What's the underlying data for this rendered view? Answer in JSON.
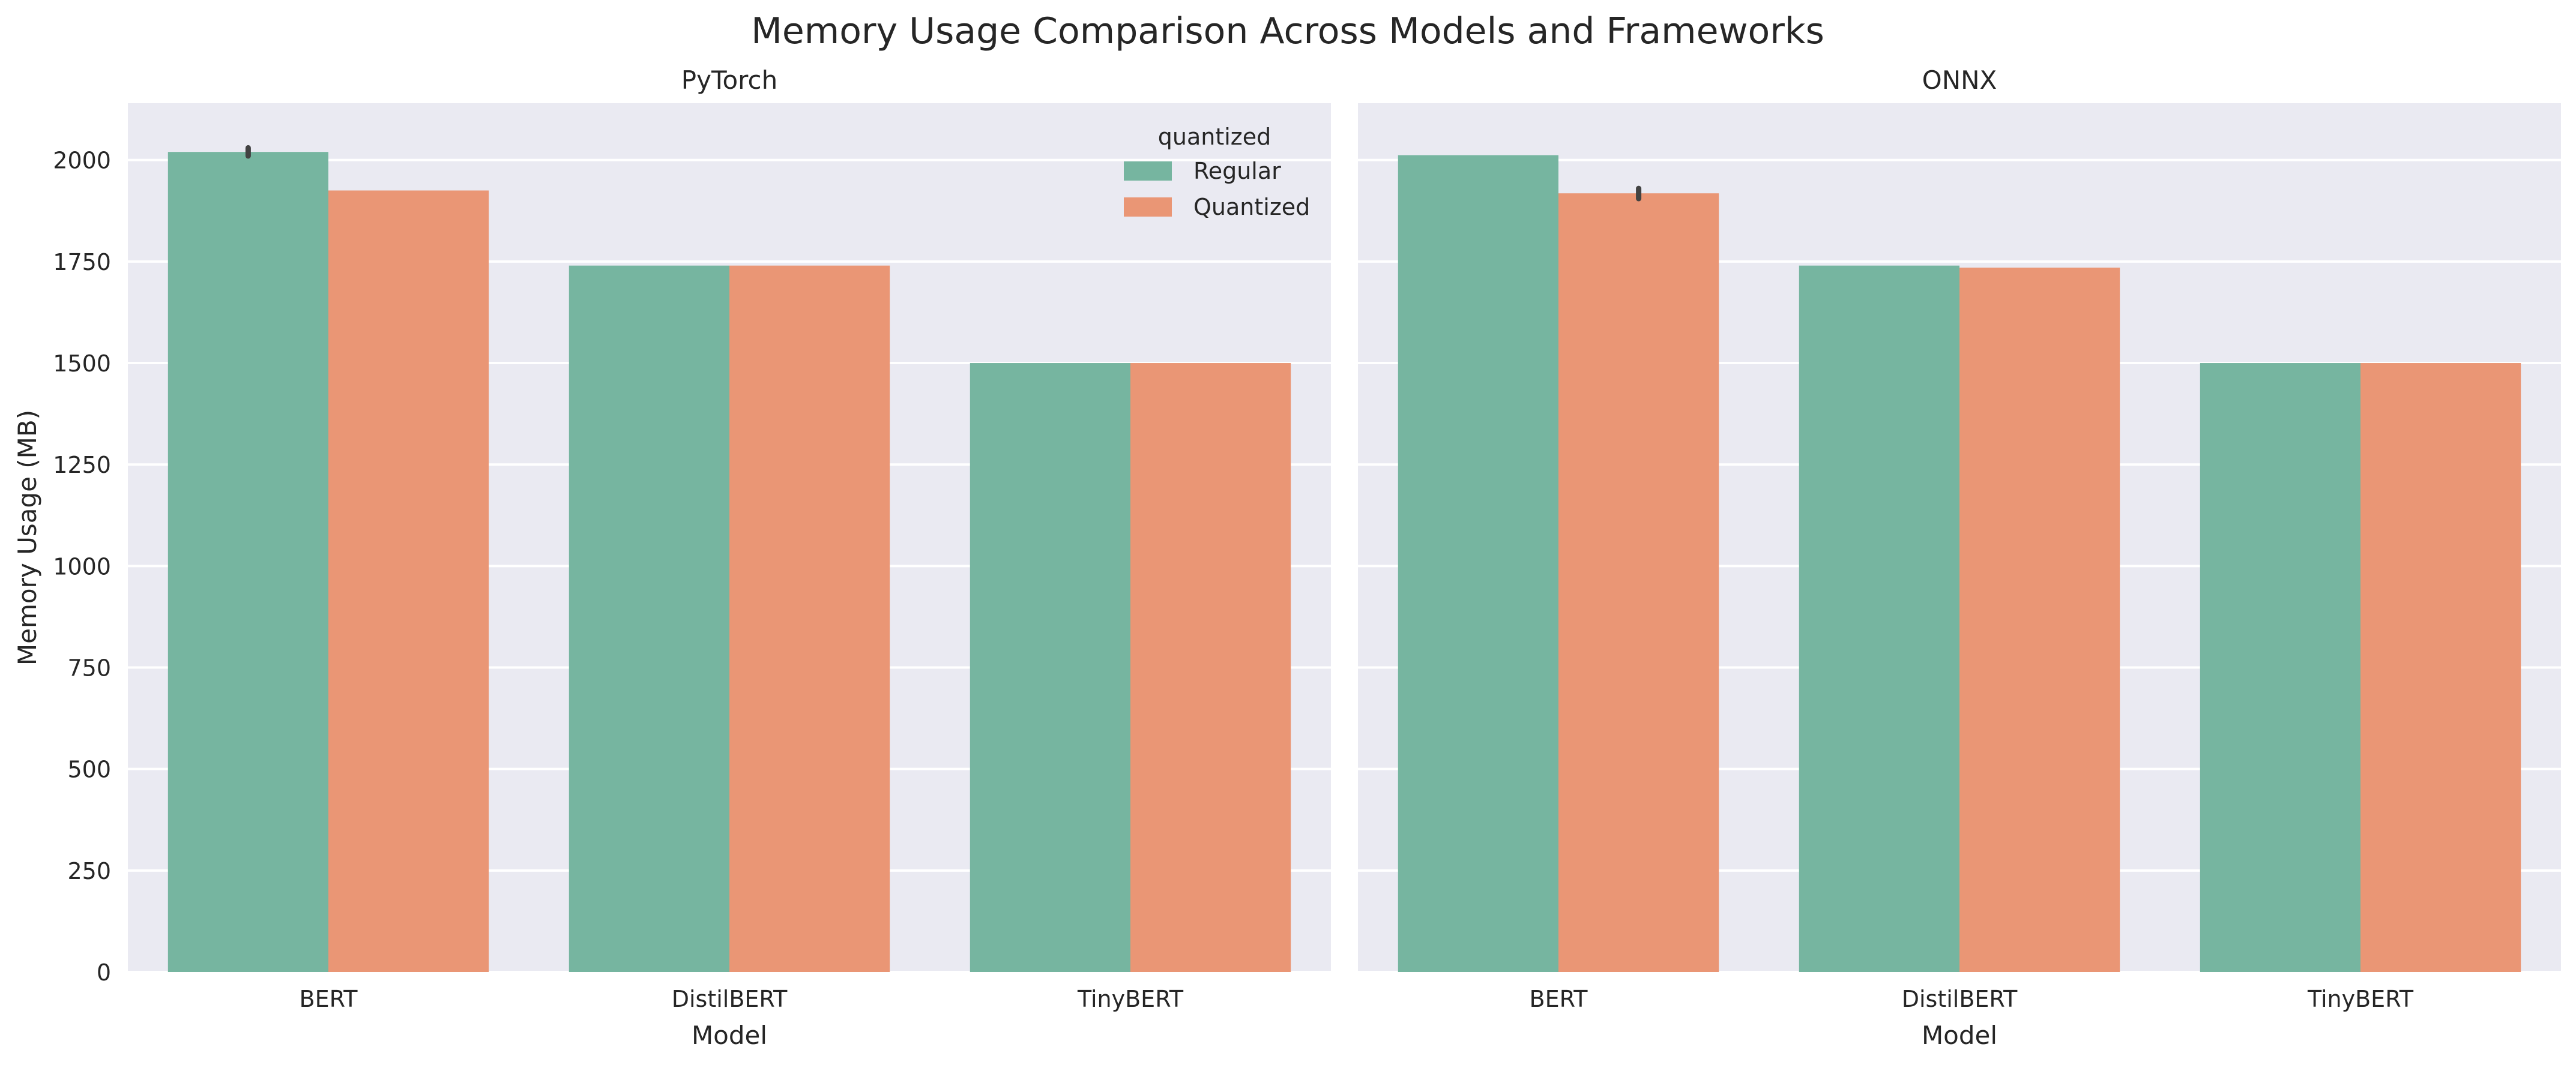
{
  "title": "Memory Usage Comparison Across Models and Frameworks",
  "colors": {
    "regular": "#76b5a0",
    "quantized": "#ea9675",
    "panel_bg": "#eaeaf2",
    "grid": "#ffffff",
    "text": "#262626",
    "errorbar": "#424242"
  },
  "legend": {
    "title": "quantized",
    "placement": "top-right",
    "entries": [
      "Regular",
      "Quantized"
    ]
  },
  "chart_data": [
    {
      "type": "bar",
      "title": "PyTorch",
      "xlabel": "Model",
      "ylabel": "Memory Usage (MB)",
      "ylim": [
        0,
        2140
      ],
      "yticks": [
        0,
        250,
        500,
        750,
        1000,
        1250,
        1500,
        1750,
        2000
      ],
      "categories": [
        "BERT",
        "DistilBERT",
        "TinyBERT"
      ],
      "grid": true,
      "series": [
        {
          "name": "Regular",
          "values": [
            2020,
            1740,
            1500
          ],
          "errors": [
            [
              2010,
              2030
            ],
            null,
            null
          ]
        },
        {
          "name": "Quantized",
          "values": [
            1925,
            1740,
            1500
          ],
          "errors": [
            null,
            null,
            null
          ]
        }
      ]
    },
    {
      "type": "bar",
      "title": "ONNX",
      "xlabel": "Model",
      "ylabel": "",
      "ylim": [
        0,
        2140
      ],
      "yticks": [
        0,
        250,
        500,
        750,
        1000,
        1250,
        1500,
        1750,
        2000
      ],
      "categories": [
        "BERT",
        "DistilBERT",
        "TinyBERT"
      ],
      "grid": true,
      "series": [
        {
          "name": "Regular",
          "values": [
            2012,
            1740,
            1500
          ],
          "errors": [
            null,
            null,
            null
          ]
        },
        {
          "name": "Quantized",
          "values": [
            1918,
            1735,
            1500
          ],
          "errors": [
            [
              1905,
              1930
            ],
            null,
            null
          ]
        }
      ]
    }
  ]
}
